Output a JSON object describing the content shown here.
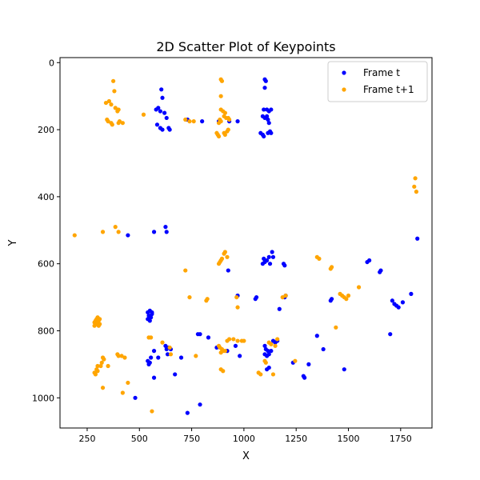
{
  "chart_data": {
    "type": "scatter",
    "title": "2D Scatter Plot of Keypoints",
    "xlabel": "X",
    "ylabel": "Y",
    "xlim": [
      120,
      1900
    ],
    "ylim": [
      1090,
      -15
    ],
    "y_inverted": true,
    "xticks": [
      250,
      500,
      750,
      1000,
      1250,
      1500,
      1750
    ],
    "yticks": [
      0,
      200,
      400,
      600,
      800,
      1000
    ],
    "grid": false,
    "legend_position": "top-right",
    "series": [
      {
        "name": "Frame t",
        "color": "#0000ff",
        "points": [
          [
            605,
            80
          ],
          [
            610,
            105
          ],
          [
            590,
            135
          ],
          [
            580,
            140
          ],
          [
            600,
            145
          ],
          [
            620,
            150
          ],
          [
            630,
            165
          ],
          [
            585,
            185
          ],
          [
            600,
            195
          ],
          [
            610,
            200
          ],
          [
            640,
            195
          ],
          [
            645,
            200
          ],
          [
            730,
            170
          ],
          [
            800,
            175
          ],
          [
            880,
            175
          ],
          [
            930,
            175
          ],
          [
            970,
            175
          ],
          [
            1100,
            50
          ],
          [
            1105,
            55
          ],
          [
            1100,
            75
          ],
          [
            1095,
            140
          ],
          [
            1110,
            140
          ],
          [
            1120,
            145
          ],
          [
            1130,
            140
          ],
          [
            1090,
            160
          ],
          [
            1100,
            165
          ],
          [
            1110,
            160
          ],
          [
            1115,
            170
          ],
          [
            1120,
            180
          ],
          [
            1080,
            210
          ],
          [
            1090,
            215
          ],
          [
            1095,
            220
          ],
          [
            1115,
            210
          ],
          [
            1125,
            205
          ],
          [
            1130,
            210
          ],
          [
            445,
            515
          ],
          [
            570,
            505
          ],
          [
            625,
            490
          ],
          [
            630,
            505
          ],
          [
            925,
            620
          ],
          [
            1095,
            585
          ],
          [
            1100,
            595
          ],
          [
            1090,
            600
          ],
          [
            1110,
            590
          ],
          [
            1120,
            580
          ],
          [
            1125,
            600
          ],
          [
            1135,
            565
          ],
          [
            1140,
            580
          ],
          [
            1190,
            600
          ],
          [
            1195,
            605
          ],
          [
            1600,
            590
          ],
          [
            1590,
            595
          ],
          [
            1655,
            620
          ],
          [
            1650,
            625
          ],
          [
            1060,
            700
          ],
          [
            1055,
            705
          ],
          [
            970,
            695
          ],
          [
            1170,
            735
          ],
          [
            1195,
            700
          ],
          [
            1200,
            695
          ],
          [
            1420,
            705
          ],
          [
            1415,
            710
          ],
          [
            1800,
            690
          ],
          [
            1830,
            525
          ],
          [
            1710,
            710
          ],
          [
            1720,
            720
          ],
          [
            1730,
            725
          ],
          [
            1740,
            730
          ],
          [
            1760,
            715
          ],
          [
            540,
            745
          ],
          [
            550,
            740
          ],
          [
            560,
            745
          ],
          [
            545,
            755
          ],
          [
            555,
            760
          ],
          [
            540,
            765
          ],
          [
            550,
            770
          ],
          [
            560,
            750
          ],
          [
            540,
            890
          ],
          [
            550,
            895
          ],
          [
            555,
            880
          ],
          [
            545,
            900
          ],
          [
            570,
            860
          ],
          [
            590,
            880
          ],
          [
            625,
            845
          ],
          [
            630,
            855
          ],
          [
            640,
            850
          ],
          [
            650,
            855
          ],
          [
            635,
            870
          ],
          [
            570,
            940
          ],
          [
            670,
            930
          ],
          [
            700,
            880
          ],
          [
            780,
            810
          ],
          [
            790,
            810
          ],
          [
            830,
            820
          ],
          [
            870,
            850
          ],
          [
            920,
            860
          ],
          [
            960,
            845
          ],
          [
            980,
            875
          ],
          [
            1100,
            845
          ],
          [
            1105,
            855
          ],
          [
            1115,
            860
          ],
          [
            1120,
            870
          ],
          [
            1100,
            870
          ],
          [
            1110,
            875
          ],
          [
            1130,
            860
          ],
          [
            1140,
            830
          ],
          [
            1150,
            835
          ],
          [
            1160,
            830
          ],
          [
            1120,
            910
          ],
          [
            1110,
            915
          ],
          [
            1235,
            895
          ],
          [
            1285,
            935
          ],
          [
            1290,
            940
          ],
          [
            1310,
            900
          ],
          [
            1350,
            815
          ],
          [
            1380,
            855
          ],
          [
            1480,
            915
          ],
          [
            1700,
            810
          ],
          [
            480,
            1000
          ],
          [
            730,
            1045
          ],
          [
            790,
            1020
          ]
        ]
      },
      {
        "name": "Frame t+1",
        "color": "#ffa500",
        "points": [
          [
            375,
            55
          ],
          [
            380,
            85
          ],
          [
            340,
            120
          ],
          [
            355,
            115
          ],
          [
            365,
            125
          ],
          [
            385,
            135
          ],
          [
            395,
            145
          ],
          [
            400,
            140
          ],
          [
            345,
            170
          ],
          [
            350,
            175
          ],
          [
            365,
            180
          ],
          [
            370,
            185
          ],
          [
            400,
            180
          ],
          [
            405,
            175
          ],
          [
            420,
            180
          ],
          [
            520,
            155
          ],
          [
            720,
            170
          ],
          [
            740,
            175
          ],
          [
            760,
            175
          ],
          [
            890,
            50
          ],
          [
            895,
            55
          ],
          [
            890,
            100
          ],
          [
            890,
            140
          ],
          [
            900,
            145
          ],
          [
            910,
            150
          ],
          [
            885,
            170
          ],
          [
            890,
            175
          ],
          [
            880,
            180
          ],
          [
            905,
            160
          ],
          [
            915,
            165
          ],
          [
            925,
            165
          ],
          [
            930,
            170
          ],
          [
            870,
            210
          ],
          [
            875,
            215
          ],
          [
            880,
            220
          ],
          [
            905,
            210
          ],
          [
            910,
            215
          ],
          [
            920,
            205
          ],
          [
            925,
            200
          ],
          [
            190,
            515
          ],
          [
            325,
            505
          ],
          [
            385,
            490
          ],
          [
            400,
            505
          ],
          [
            1820,
            345
          ],
          [
            1815,
            370
          ],
          [
            1825,
            385
          ],
          [
            880,
            600
          ],
          [
            885,
            595
          ],
          [
            890,
            590
          ],
          [
            895,
            585
          ],
          [
            905,
            570
          ],
          [
            910,
            565
          ],
          [
            920,
            580
          ],
          [
            720,
            620
          ],
          [
            740,
            700
          ],
          [
            820,
            710
          ],
          [
            825,
            705
          ],
          [
            965,
            700
          ],
          [
            970,
            730
          ],
          [
            1185,
            700
          ],
          [
            1200,
            695
          ],
          [
            1350,
            580
          ],
          [
            1360,
            585
          ],
          [
            1420,
            610
          ],
          [
            1415,
            615
          ],
          [
            1460,
            690
          ],
          [
            1470,
            695
          ],
          [
            1480,
            700
          ],
          [
            1490,
            705
          ],
          [
            1500,
            695
          ],
          [
            1550,
            670
          ],
          [
            1440,
            790
          ],
          [
            290,
            770
          ],
          [
            295,
            765
          ],
          [
            300,
            775
          ],
          [
            305,
            770
          ],
          [
            310,
            765
          ],
          [
            285,
            775
          ],
          [
            295,
            780
          ],
          [
            300,
            760
          ],
          [
            310,
            780
          ],
          [
            305,
            785
          ],
          [
            285,
            785
          ],
          [
            545,
            820
          ],
          [
            555,
            820
          ],
          [
            610,
            835
          ],
          [
            645,
            850
          ],
          [
            650,
            870
          ],
          [
            770,
            875
          ],
          [
            880,
            845
          ],
          [
            885,
            850
          ],
          [
            895,
            855
          ],
          [
            900,
            860
          ],
          [
            890,
            865
          ],
          [
            910,
            860
          ],
          [
            920,
            830
          ],
          [
            930,
            825
          ],
          [
            950,
            825
          ],
          [
            970,
            830
          ],
          [
            990,
            830
          ],
          [
            1000,
            830
          ],
          [
            1120,
            835
          ],
          [
            1130,
            840
          ],
          [
            1150,
            845
          ],
          [
            1160,
            825
          ],
          [
            1100,
            890
          ],
          [
            1105,
            895
          ],
          [
            1245,
            890
          ],
          [
            1070,
            925
          ],
          [
            1080,
            930
          ],
          [
            1140,
            930
          ],
          [
            890,
            915
          ],
          [
            900,
            920
          ],
          [
            325,
            880
          ],
          [
            330,
            885
          ],
          [
            320,
            895
          ],
          [
            300,
            905
          ],
          [
            315,
            905
          ],
          [
            350,
            905
          ],
          [
            295,
            915
          ],
          [
            300,
            920
          ],
          [
            285,
            925
          ],
          [
            290,
            930
          ],
          [
            395,
            870
          ],
          [
            400,
            875
          ],
          [
            415,
            875
          ],
          [
            430,
            880
          ],
          [
            445,
            955
          ],
          [
            325,
            970
          ],
          [
            420,
            985
          ],
          [
            560,
            1040
          ]
        ]
      }
    ]
  }
}
